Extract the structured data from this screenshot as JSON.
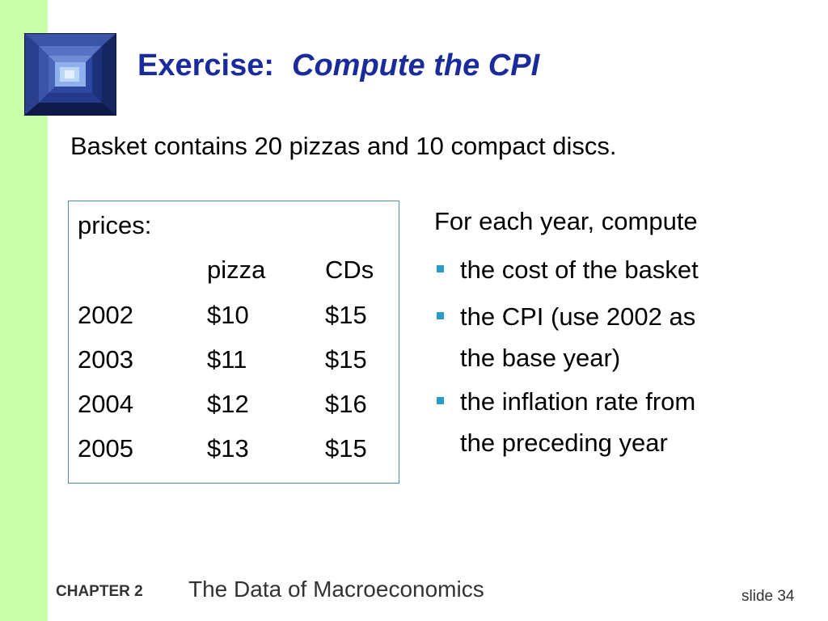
{
  "title": {
    "lead": "Exercise:",
    "emphasis": "Compute the CPI"
  },
  "basket_text": "Basket contains 20 pizzas and 10 compact discs.",
  "price_table": {
    "caption": "prices:",
    "headers": [
      "pizza",
      "CDs"
    ],
    "rows": [
      {
        "year": "2002",
        "pizza": "$10",
        "cds": "$15"
      },
      {
        "year": "2003",
        "pizza": "$11",
        "cds": "$15"
      },
      {
        "year": "2004",
        "pizza": "$12",
        "cds": "$16"
      },
      {
        "year": "2005",
        "pizza": "$13",
        "cds": "$15"
      }
    ]
  },
  "tasks": {
    "lead": "For each year, compute",
    "items": [
      {
        "line1": "the cost of the basket",
        "line2": ""
      },
      {
        "line1": "the CPI (use 2002 as",
        "line2": "the base year)"
      },
      {
        "line1": "the inflation rate from",
        "line2": "the preceding year"
      }
    ]
  },
  "footer": {
    "chapter": "CHAPTER 2",
    "subject": "The Data of Macroeconomics",
    "slide": "slide 34"
  },
  "colors": {
    "title": "#1a2b9c",
    "left_bar": "#ccffaa",
    "bullet": "#2a9ac9",
    "table_border": "#4f8da3"
  },
  "icons": {
    "logo": "stairwell-photo-logo"
  }
}
